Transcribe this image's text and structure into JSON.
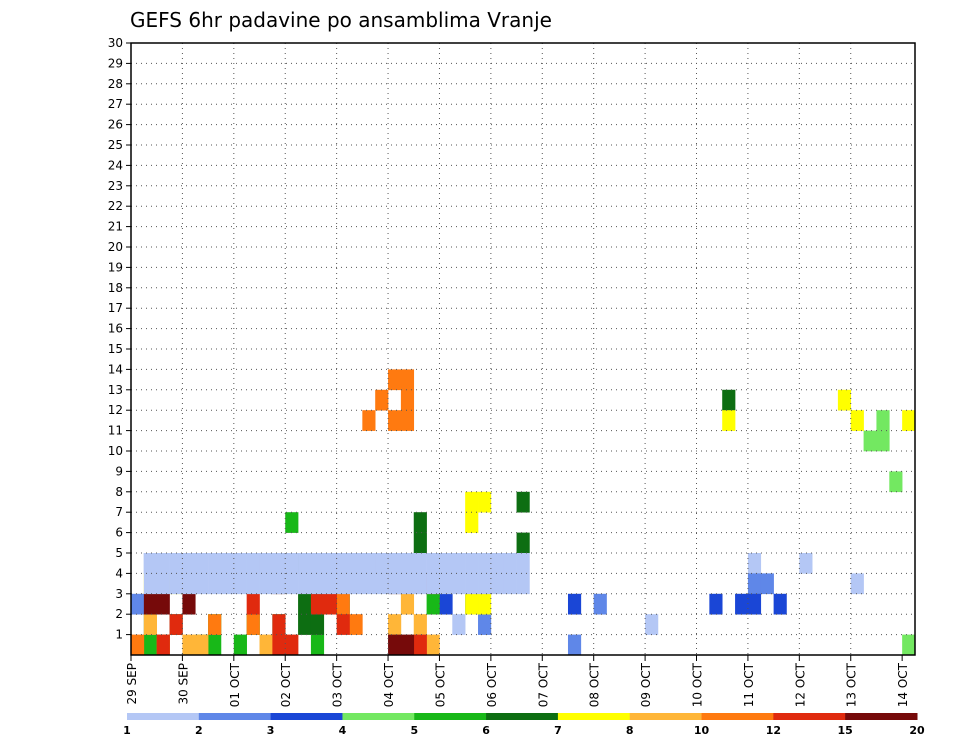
{
  "chart_data": {
    "type": "heatmap",
    "title": "GEFS 6hr padavine po ansamblima Vranje",
    "xlabel": "",
    "ylabel": "",
    "x_tick_labels": [
      "29 SEP",
      "30 SEP",
      "01 OCT",
      "02 OCT",
      "03 OCT",
      "04 OCT",
      "05 OCT",
      "06 OCT",
      "07 OCT",
      "08 OCT",
      "09 OCT",
      "10 OCT",
      "11 OCT",
      "12 OCT",
      "13 OCT",
      "14 OCT"
    ],
    "y_tick_labels": [
      "1",
      "2",
      "3",
      "4",
      "5",
      "6",
      "7",
      "8",
      "9",
      "10",
      "11",
      "12",
      "13",
      "14",
      "15",
      "16",
      "17",
      "18",
      "19",
      "20",
      "21",
      "22",
      "23",
      "24",
      "25",
      "26",
      "27",
      "28",
      "29",
      "30"
    ],
    "xlim": [
      0,
      61
    ],
    "ylim": [
      0,
      30
    ],
    "x_unit": "6-hour step from 29 SEP 00Z",
    "grid": true,
    "colorbar": {
      "labels": [
        "1",
        "2",
        "3",
        "4",
        "5",
        "6",
        "7",
        "8",
        "10",
        "12",
        "15",
        "20"
      ],
      "colors": [
        "#b4c7f5",
        "#5f87e8",
        "#1a46d6",
        "#73e861",
        "#18b818",
        "#0d6e12",
        "#ffff00",
        "#ffb638",
        "#ff7a10",
        "#e02a0e",
        "#760a0a"
      ]
    },
    "cells": [
      [
        11,
        1,
        1
      ],
      [
        11,
        2,
        1
      ],
      [
        25,
        2,
        1
      ],
      [
        40,
        2,
        1
      ],
      [
        48,
        5,
        1
      ],
      [
        52,
        5,
        1
      ],
      [
        56,
        4,
        1
      ],
      [
        61,
        8,
        1
      ],
      [
        62,
        11,
        1
      ],
      [
        64,
        14,
        1
      ],
      [
        65,
        2,
        1
      ],
      [
        65,
        4,
        1
      ],
      [
        65,
        11,
        1
      ],
      [
        65,
        12,
        1
      ],
      [
        0,
        3,
        2
      ],
      [
        1,
        5,
        2
      ],
      [
        27,
        2,
        2
      ],
      [
        34,
        1,
        2
      ],
      [
        36,
        3,
        2
      ],
      [
        48,
        4,
        2
      ],
      [
        49,
        4,
        2
      ],
      [
        65,
        3,
        2
      ],
      [
        66,
        3,
        2
      ],
      [
        24,
        3,
        3
      ],
      [
        26,
        3,
        3
      ],
      [
        34,
        3,
        3
      ],
      [
        45,
        3,
        3
      ],
      [
        47,
        3,
        3
      ],
      [
        48,
        3,
        3
      ],
      [
        50,
        3,
        3
      ],
      [
        61,
        8,
        3
      ],
      [
        65,
        9,
        3
      ],
      [
        66,
        9,
        3
      ],
      [
        68,
        10,
        3
      ],
      [
        75,
        11,
        3
      ],
      [
        57,
        11,
        4
      ],
      [
        58,
        11,
        4
      ],
      [
        58,
        12,
        4
      ],
      [
        59,
        9,
        4
      ],
      [
        60,
        1,
        4
      ],
      [
        61,
        12,
        4
      ],
      [
        62,
        12,
        4
      ],
      [
        71,
        12,
        4
      ],
      [
        73,
        11,
        4
      ],
      [
        73,
        12,
        4
      ],
      [
        75,
        12,
        4
      ],
      [
        1,
        1,
        5
      ],
      [
        2,
        1,
        5
      ],
      [
        8,
        1,
        5
      ],
      [
        5,
        1,
        5
      ],
      [
        6,
        1,
        5
      ],
      [
        14,
        1,
        5
      ],
      [
        6,
        2,
        5
      ],
      [
        9,
        2,
        5
      ],
      [
        11,
        2,
        5
      ],
      [
        12,
        5,
        5
      ],
      [
        12,
        7,
        5
      ],
      [
        23,
        3,
        5
      ],
      [
        1,
        2,
        6
      ],
      [
        3,
        2,
        6
      ],
      [
        13,
        2,
        6
      ],
      [
        14,
        2,
        6
      ],
      [
        13,
        3,
        6
      ],
      [
        16,
        3,
        6
      ],
      [
        22,
        6,
        6
      ],
      [
        22,
        7,
        6
      ],
      [
        30,
        6,
        6
      ],
      [
        30,
        8,
        6
      ],
      [
        46,
        13,
        6
      ],
      [
        63,
        13,
        6
      ],
      [
        70,
        12,
        6
      ],
      [
        1,
        4,
        7
      ],
      [
        3,
        4,
        7
      ],
      [
        26,
        3,
        7
      ],
      [
        26,
        7,
        7
      ],
      [
        26,
        8,
        7
      ],
      [
        27,
        3,
        7
      ],
      [
        27,
        8,
        7
      ],
      [
        46,
        12,
        7
      ],
      [
        55,
        13,
        7
      ],
      [
        56,
        12,
        7
      ],
      [
        60,
        12,
        7
      ],
      [
        64,
        13,
        7
      ],
      [
        67,
        13,
        7
      ],
      [
        1,
        2,
        8
      ],
      [
        4,
        1,
        8
      ],
      [
        5,
        1,
        8
      ],
      [
        10,
        1,
        8
      ],
      [
        20,
        2,
        8
      ],
      [
        21,
        3,
        8
      ],
      [
        22,
        2,
        8
      ],
      [
        23,
        1,
        8
      ],
      [
        24,
        5,
        8
      ],
      [
        0,
        1,
        9
      ],
      [
        2,
        1,
        9
      ],
      [
        6,
        2,
        9
      ],
      [
        9,
        2,
        9
      ],
      [
        10,
        5,
        9
      ],
      [
        16,
        3,
        9
      ],
      [
        17,
        2,
        9
      ],
      [
        18,
        12,
        9
      ],
      [
        19,
        13,
        9
      ],
      [
        20,
        12,
        9
      ],
      [
        20,
        14,
        9
      ],
      [
        21,
        12,
        9
      ],
      [
        21,
        13,
        9
      ],
      [
        21,
        14,
        9
      ],
      [
        2,
        1,
        10
      ],
      [
        3,
        2,
        10
      ],
      [
        9,
        3,
        10
      ],
      [
        11,
        1,
        10
      ],
      [
        11,
        2,
        10
      ],
      [
        12,
        1,
        10
      ],
      [
        14,
        3,
        10
      ],
      [
        15,
        3,
        10
      ],
      [
        16,
        2,
        10
      ],
      [
        22,
        1,
        10
      ],
      [
        23,
        4,
        10
      ],
      [
        1,
        3,
        11
      ],
      [
        2,
        3,
        11
      ],
      [
        4,
        3,
        11
      ],
      [
        11,
        4,
        11
      ],
      [
        14,
        4,
        11
      ],
      [
        16,
        5,
        11
      ],
      [
        17,
        5,
        11
      ],
      [
        18,
        5,
        11
      ],
      [
        19,
        5,
        11
      ],
      [
        20,
        4,
        11
      ],
      [
        20,
        1,
        11
      ],
      [
        21,
        1,
        11
      ],
      [
        1,
        4,
        12
      ],
      [
        2,
        4,
        12
      ],
      [
        3,
        4,
        12
      ],
      [
        4,
        4,
        12
      ],
      [
        5,
        4,
        12
      ],
      [
        6,
        4,
        12
      ],
      [
        7,
        4,
        12
      ],
      [
        8,
        4,
        12
      ],
      [
        9,
        4,
        12
      ],
      [
        10,
        4,
        12
      ],
      [
        11,
        4,
        12
      ],
      [
        12,
        4,
        12
      ],
      [
        13,
        4,
        12
      ],
      [
        14,
        4,
        12
      ],
      [
        15,
        4,
        12
      ],
      [
        16,
        4,
        12
      ],
      [
        17,
        4,
        12
      ],
      [
        18,
        4,
        12
      ],
      [
        19,
        4,
        12
      ],
      [
        20,
        4,
        12
      ],
      [
        21,
        4,
        12
      ],
      [
        22,
        4,
        12
      ],
      [
        23,
        4,
        12
      ],
      [
        24,
        4,
        12
      ],
      [
        25,
        4,
        12
      ],
      [
        26,
        4,
        12
      ],
      [
        27,
        4,
        12
      ],
      [
        28,
        4,
        12
      ],
      [
        29,
        4,
        12
      ],
      [
        30,
        4,
        12
      ],
      [
        1,
        5,
        13
      ],
      [
        2,
        5,
        13
      ],
      [
        3,
        5,
        13
      ],
      [
        4,
        5,
        13
      ],
      [
        5,
        5,
        13
      ],
      [
        6,
        5,
        13
      ],
      [
        7,
        5,
        13
      ],
      [
        8,
        5,
        13
      ],
      [
        9,
        5,
        13
      ],
      [
        10,
        5,
        13
      ],
      [
        11,
        5,
        13
      ],
      [
        12,
        5,
        13
      ],
      [
        13,
        5,
        13
      ],
      [
        14,
        5,
        13
      ],
      [
        15,
        5,
        13
      ],
      [
        16,
        5,
        13
      ],
      [
        17,
        5,
        13
      ],
      [
        18,
        5,
        13
      ],
      [
        19,
        5,
        13
      ],
      [
        20,
        5,
        13
      ],
      [
        21,
        5,
        13
      ],
      [
        22,
        5,
        13
      ],
      [
        23,
        5,
        13
      ],
      [
        24,
        5,
        13
      ],
      [
        25,
        5,
        13
      ],
      [
        26,
        5,
        13
      ],
      [
        27,
        5,
        13
      ],
      [
        28,
        5,
        13
      ],
      [
        29,
        5,
        13
      ],
      [
        30,
        5,
        13
      ]
    ]
  }
}
